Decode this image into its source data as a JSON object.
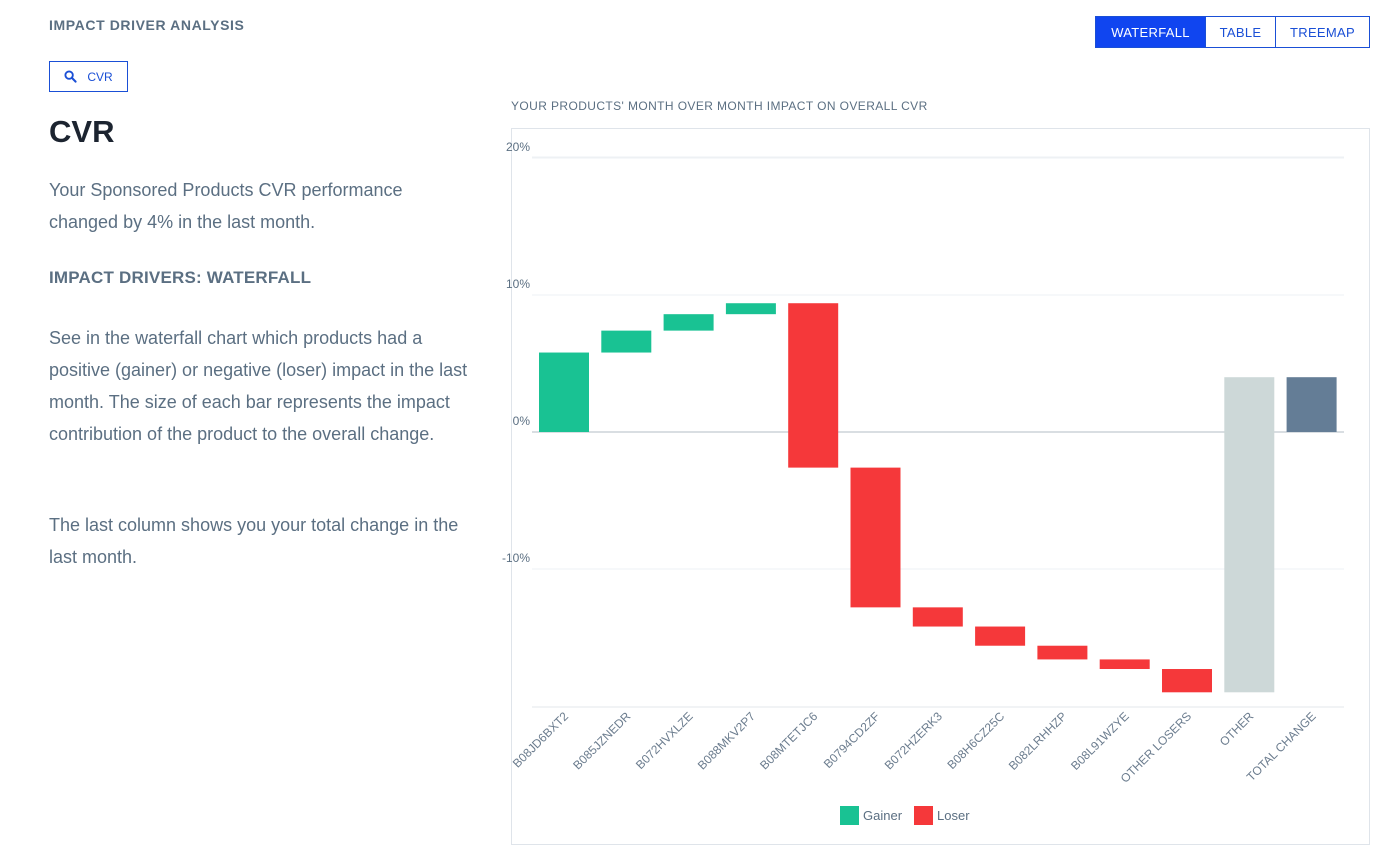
{
  "header": {
    "section_title": "IMPACT DRIVER ANALYSIS"
  },
  "metric_pill": {
    "label": "CVR",
    "icon": "search-icon"
  },
  "left": {
    "metric_title": "CVR",
    "summary": "Your Sponsored Products CVR performance changed by 4% in the last month.",
    "drivers_heading": "IMPACT DRIVERS: WATERFALL",
    "explanation": "See in the waterfall chart which products had a positive (gainer) or negative (loser) impact in the last month. The size of each bar represents the impact contribution of the product to the overall change.",
    "last_column_note": "The last column shows you your total change in the last month."
  },
  "view_toggle": {
    "options": [
      "WATERFALL",
      "TABLE",
      "TREEMAP"
    ],
    "active": "WATERFALL"
  },
  "chart_caption": "YOUR PRODUCTS' MONTH OVER MONTH IMPACT ON OVERALL CVR",
  "colors": {
    "gainer": "#19c293",
    "loser": "#f5383a",
    "other": "#cdd8d8",
    "total": "#647d96",
    "accent": "#1045f0"
  },
  "legend": [
    {
      "label": "Gainer",
      "color": "#19c293"
    },
    {
      "label": "Loser",
      "color": "#f5383a"
    }
  ],
  "chart_data": {
    "type": "bar",
    "subtype": "waterfall",
    "title": "YOUR PRODUCTS' MONTH OVER MONTH IMPACT ON OVERALL CVR",
    "xlabel": "",
    "ylabel": "",
    "ylim": [
      -20,
      20
    ],
    "yticks": [
      {
        "value": 20,
        "label": "20%"
      },
      {
        "value": 10,
        "label": "10%"
      },
      {
        "value": 0,
        "label": "0%"
      },
      {
        "value": -10,
        "label": "-10%"
      }
    ],
    "grid": true,
    "legend_position": "bottom",
    "categories": [
      "B08JD6BXT2",
      "B085JZNEDR",
      "B072HVXLZE",
      "B088MKV2P7",
      "B08MTETJC6",
      "B0794CD2ZF",
      "B072HZERK3",
      "B08H6CZ25C",
      "B082LRHHZP",
      "B08L91WZYE",
      "OTHER LOSERS",
      "OTHER",
      "TOTAL CHANGE"
    ],
    "bars": [
      {
        "category": "B08JD6BXT2",
        "kind": "gainer",
        "start": 0,
        "end": 5.8
      },
      {
        "category": "B085JZNEDR",
        "kind": "gainer",
        "start": 5.8,
        "end": 7.4
      },
      {
        "category": "B072HVXLZE",
        "kind": "gainer",
        "start": 7.4,
        "end": 8.6
      },
      {
        "category": "B088MKV2P7",
        "kind": "gainer",
        "start": 8.6,
        "end": 9.4
      },
      {
        "category": "B08MTETJC6",
        "kind": "loser",
        "start": 9.4,
        "end": -2.6
      },
      {
        "category": "B0794CD2ZF",
        "kind": "loser",
        "start": -2.6,
        "end": -12.8
      },
      {
        "category": "B072HZERK3",
        "kind": "loser",
        "start": -12.8,
        "end": -14.2
      },
      {
        "category": "B08H6CZ25C",
        "kind": "loser",
        "start": -14.2,
        "end": -15.6
      },
      {
        "category": "B082LRHHZP",
        "kind": "loser",
        "start": -15.6,
        "end": -16.6
      },
      {
        "category": "B08L91WZYE",
        "kind": "loser",
        "start": -16.6,
        "end": -17.3
      },
      {
        "category": "OTHER LOSERS",
        "kind": "loser",
        "start": -17.3,
        "end": -19.0
      },
      {
        "category": "OTHER",
        "kind": "other",
        "start": -19.0,
        "end": 4.0
      },
      {
        "category": "TOTAL CHANGE",
        "kind": "total",
        "start": 0,
        "end": 4.0
      }
    ]
  }
}
